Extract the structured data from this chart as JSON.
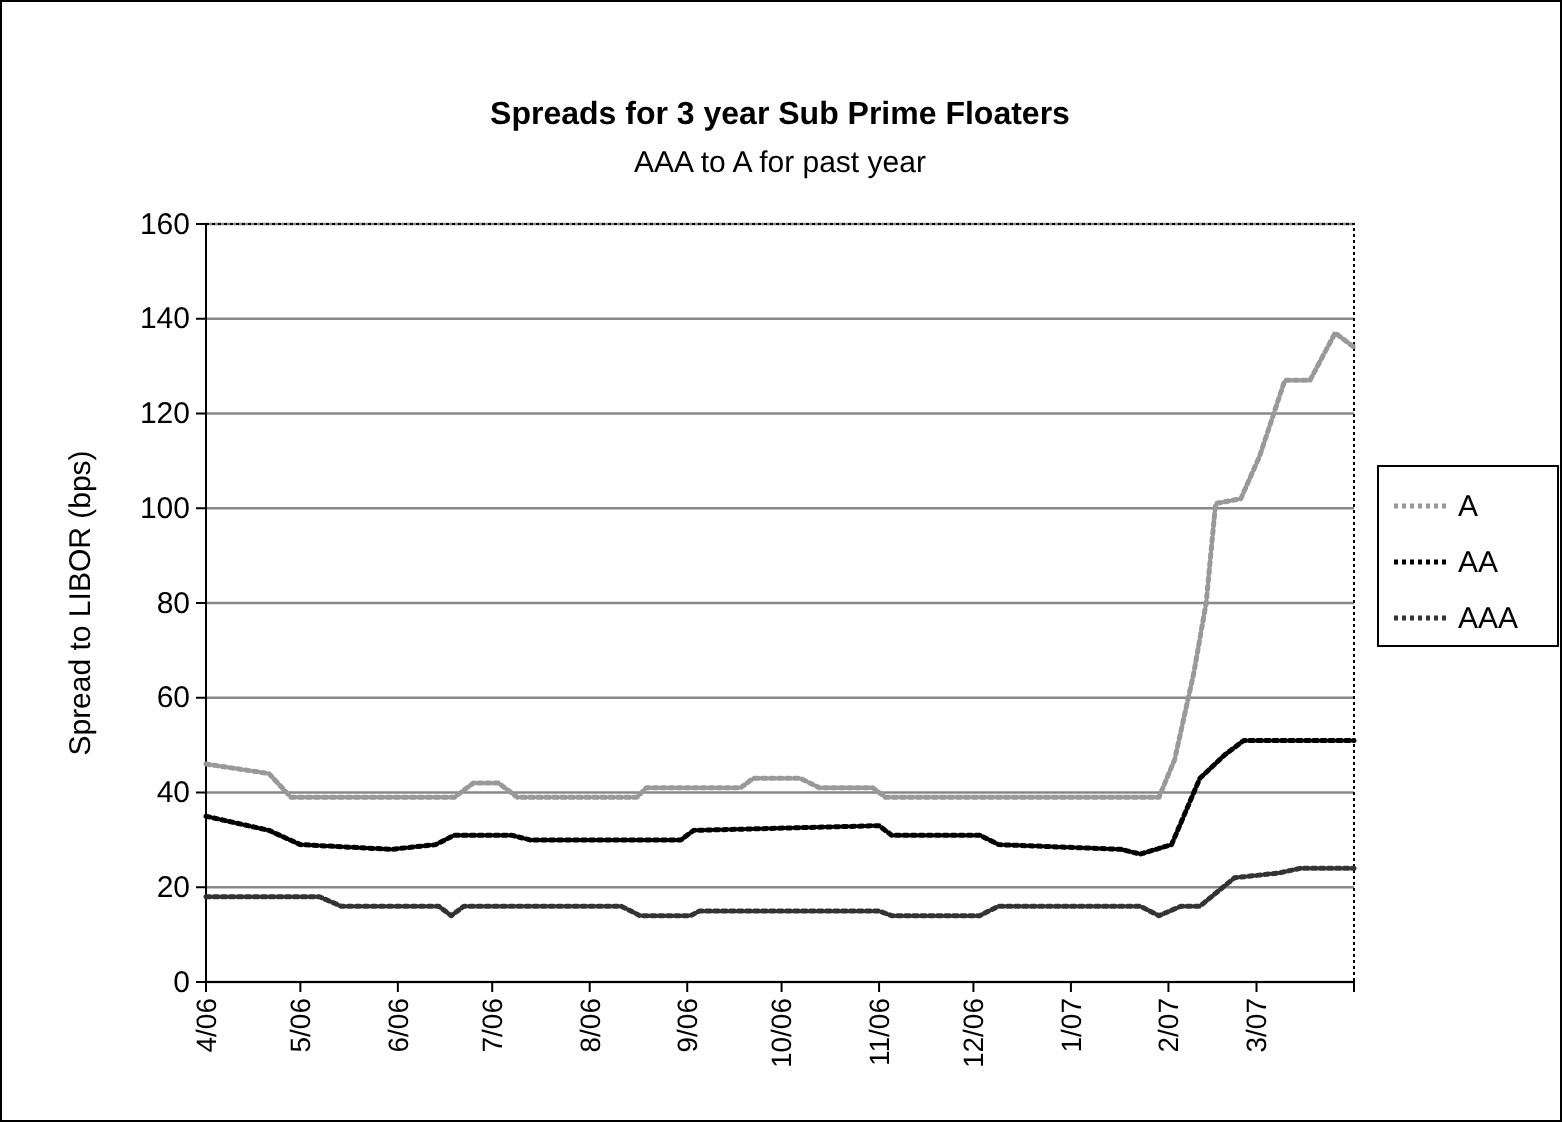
{
  "chart_data": {
    "type": "line",
    "title": "Spreads for 3 year Sub Prime Floaters",
    "subtitle": "AAA to A for past year",
    "ylabel": "Spread to LIBOR (bps)",
    "xlim": [
      "2006-04-01",
      "2007-04-01"
    ],
    "xticks": [
      {
        "value": "2006-04-01",
        "label": "4/06"
      },
      {
        "value": "2006-05-01",
        "label": "5/06"
      },
      {
        "value": "2006-06-01",
        "label": "6/06"
      },
      {
        "value": "2006-07-01",
        "label": "7/06"
      },
      {
        "value": "2006-08-01",
        "label": "8/06"
      },
      {
        "value": "2006-09-01",
        "label": "9/06"
      },
      {
        "value": "2006-10-01",
        "label": "10/06"
      },
      {
        "value": "2006-11-01",
        "label": "11/06"
      },
      {
        "value": "2006-12-01",
        "label": "12/06"
      },
      {
        "value": "2007-01-01",
        "label": "1/07"
      },
      {
        "value": "2007-02-01",
        "label": "2/07"
      },
      {
        "value": "2007-03-01",
        "label": "3/07"
      }
    ],
    "ylim": [
      0,
      160
    ],
    "yticks": [
      0,
      20,
      40,
      60,
      80,
      100,
      120,
      140,
      160
    ],
    "grid": "y",
    "legend": "right",
    "line_style": "dotted",
    "series": [
      {
        "name": "A",
        "color": "#999999",
        "x": [
          "2006-04-01",
          "2006-04-21",
          "2006-04-28",
          "2006-06-19",
          "2006-06-25",
          "2006-07-03",
          "2006-07-09",
          "2006-08-16",
          "2006-08-19",
          "2006-09-18",
          "2006-09-22",
          "2006-10-07",
          "2006-10-13",
          "2006-10-30",
          "2006-11-03",
          "2007-01-29",
          "2007-02-03",
          "2007-02-09",
          "2007-02-13",
          "2007-02-16",
          "2007-02-24",
          "2007-03-02",
          "2007-03-10",
          "2007-03-18",
          "2007-03-26",
          "2007-04-01"
        ],
        "values": [
          46,
          44,
          39,
          39,
          42,
          42,
          39,
          39,
          41,
          41,
          43,
          43,
          41,
          41,
          39,
          39,
          47,
          65,
          80,
          101,
          102,
          111,
          127,
          127,
          137,
          134
        ]
      },
      {
        "name": "AA",
        "color": "#000000",
        "x": [
          "2006-04-01",
          "2006-04-21",
          "2006-05-01",
          "2006-05-30",
          "2006-06-13",
          "2006-06-19",
          "2006-07-07",
          "2006-07-13",
          "2006-08-30",
          "2006-09-03",
          "2006-11-01",
          "2006-11-05",
          "2006-12-03",
          "2006-12-09",
          "2007-01-17",
          "2007-01-23",
          "2007-02-02",
          "2007-02-11",
          "2007-02-19",
          "2007-02-25",
          "2007-04-01"
        ],
        "values": [
          35,
          32,
          29,
          28,
          29,
          31,
          31,
          30,
          30,
          32,
          33,
          31,
          31,
          29,
          28,
          27,
          29,
          43,
          48,
          51,
          51
        ]
      },
      {
        "name": "AAA",
        "color": "#333333",
        "x": [
          "2006-04-01",
          "2006-05-07",
          "2006-05-14",
          "2006-06-14",
          "2006-06-18",
          "2006-06-22",
          "2006-08-11",
          "2006-08-17",
          "2006-09-02",
          "2006-09-05",
          "2006-11-01",
          "2006-11-05",
          "2006-12-03",
          "2006-12-09",
          "2007-01-23",
          "2007-01-29",
          "2007-02-05",
          "2007-02-11",
          "2007-02-22",
          "2007-03-08",
          "2007-03-15",
          "2007-04-01"
        ],
        "values": [
          18,
          18,
          16,
          16,
          14,
          16,
          16,
          14,
          14,
          15,
          15,
          14,
          14,
          16,
          16,
          14,
          16,
          16,
          22,
          23,
          24,
          24
        ]
      }
    ]
  }
}
